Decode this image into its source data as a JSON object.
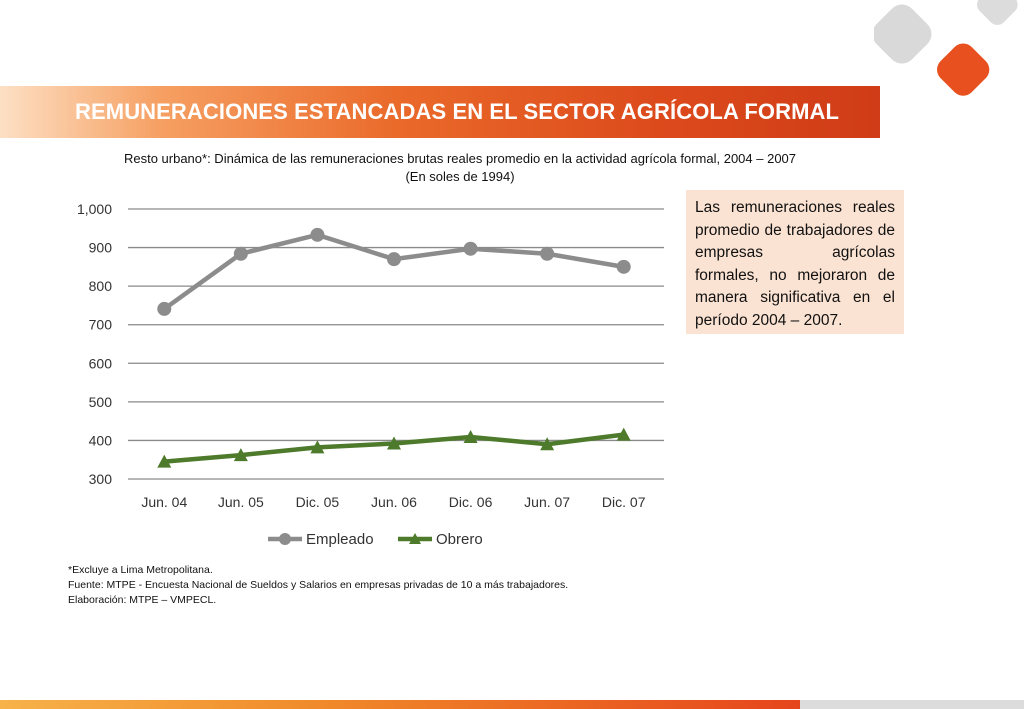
{
  "header": {
    "title": "REMUNERACIONES ESTANCADAS EN EL SECTOR AGRÍCOLA FORMAL",
    "subtitle_line1": "Resto urbano*: Dinámica de las remuneraciones brutas reales promedio en la actividad agrícola formal, 2004 – 2007",
    "subtitle_line2": "(En soles de 1994)"
  },
  "colors": {
    "banner_start": "#fde0c4",
    "banner_end": "#cf3c17",
    "empleado": "#8c8c8c",
    "obrero": "#4e7a2c",
    "note_bg": "#fbe3d3",
    "logo_gray": "#d9d9d9",
    "logo_orange": "#e8511f"
  },
  "chart_data": {
    "type": "line",
    "categories": [
      "Jun. 04",
      "Jun. 05",
      "Dic. 05",
      "Jun. 06",
      "Dic. 06",
      "Jun. 07",
      "Dic. 07"
    ],
    "series": [
      {
        "name": "Empleado",
        "marker": "circle",
        "values": [
          741,
          884,
          933,
          870,
          897,
          884,
          850
        ]
      },
      {
        "name": "Obrero",
        "marker": "triangle",
        "values": [
          345,
          362,
          382,
          392,
          409,
          390,
          415
        ]
      }
    ],
    "y_ticks": [
      "300",
      "400",
      "500",
      "600",
      "700",
      "800",
      "900",
      "1,000"
    ],
    "ylim": [
      300,
      1000
    ],
    "grid": true,
    "legend_position": "bottom"
  },
  "note": {
    "text": "Las remuneraciones reales promedio de trabajadores de empresas agrícolas formales, no mejoraron de manera significativa en el período 2004 – 2007."
  },
  "footnotes": {
    "line1": "*Excluye a Lima Metropolitana.",
    "line2": "Fuente: MTPE - Encuesta Nacional de Sueldos y Salarios en empresas privadas de 10 a más trabajadores.",
    "line3": "Elaboración: MTPE – VMPECL."
  }
}
